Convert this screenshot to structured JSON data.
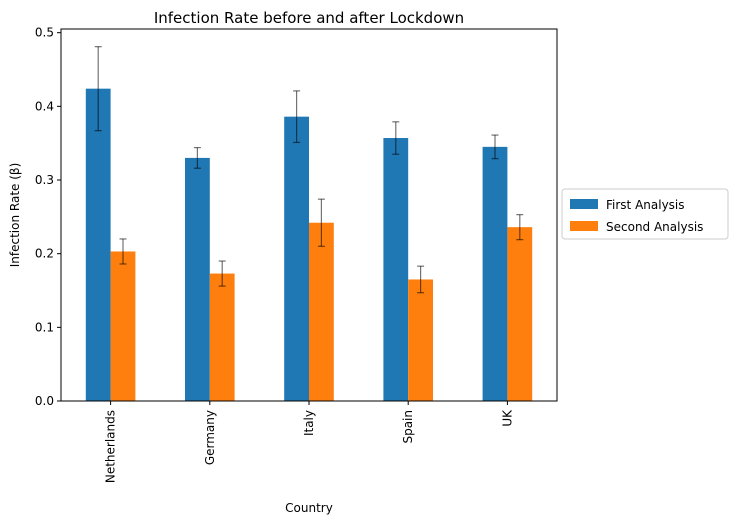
{
  "chart_data": {
    "type": "bar",
    "title": "Infection Rate before and after Lockdown",
    "xlabel": "Country",
    "ylabel": "Infection Rate (β)",
    "categories": [
      "Netherlands",
      "Germany",
      "Italy",
      "Spain",
      "UK"
    ],
    "series": [
      {
        "name": "First Analysis",
        "color": "#1f77b4",
        "values": [
          0.424,
          0.33,
          0.386,
          0.357,
          0.345
        ],
        "errors": [
          0.057,
          0.014,
          0.035,
          0.022,
          0.016
        ]
      },
      {
        "name": "Second Analysis",
        "color": "#ff7f0e",
        "values": [
          0.203,
          0.173,
          0.242,
          0.165,
          0.236
        ],
        "errors": [
          0.017,
          0.017,
          0.032,
          0.018,
          0.017
        ]
      }
    ],
    "ylim": [
      0,
      0.505
    ],
    "yticks": [
      "0.0",
      "0.1",
      "0.2",
      "0.3",
      "0.4",
      "0.5"
    ],
    "grid": false,
    "legend_position": "outside-right"
  }
}
